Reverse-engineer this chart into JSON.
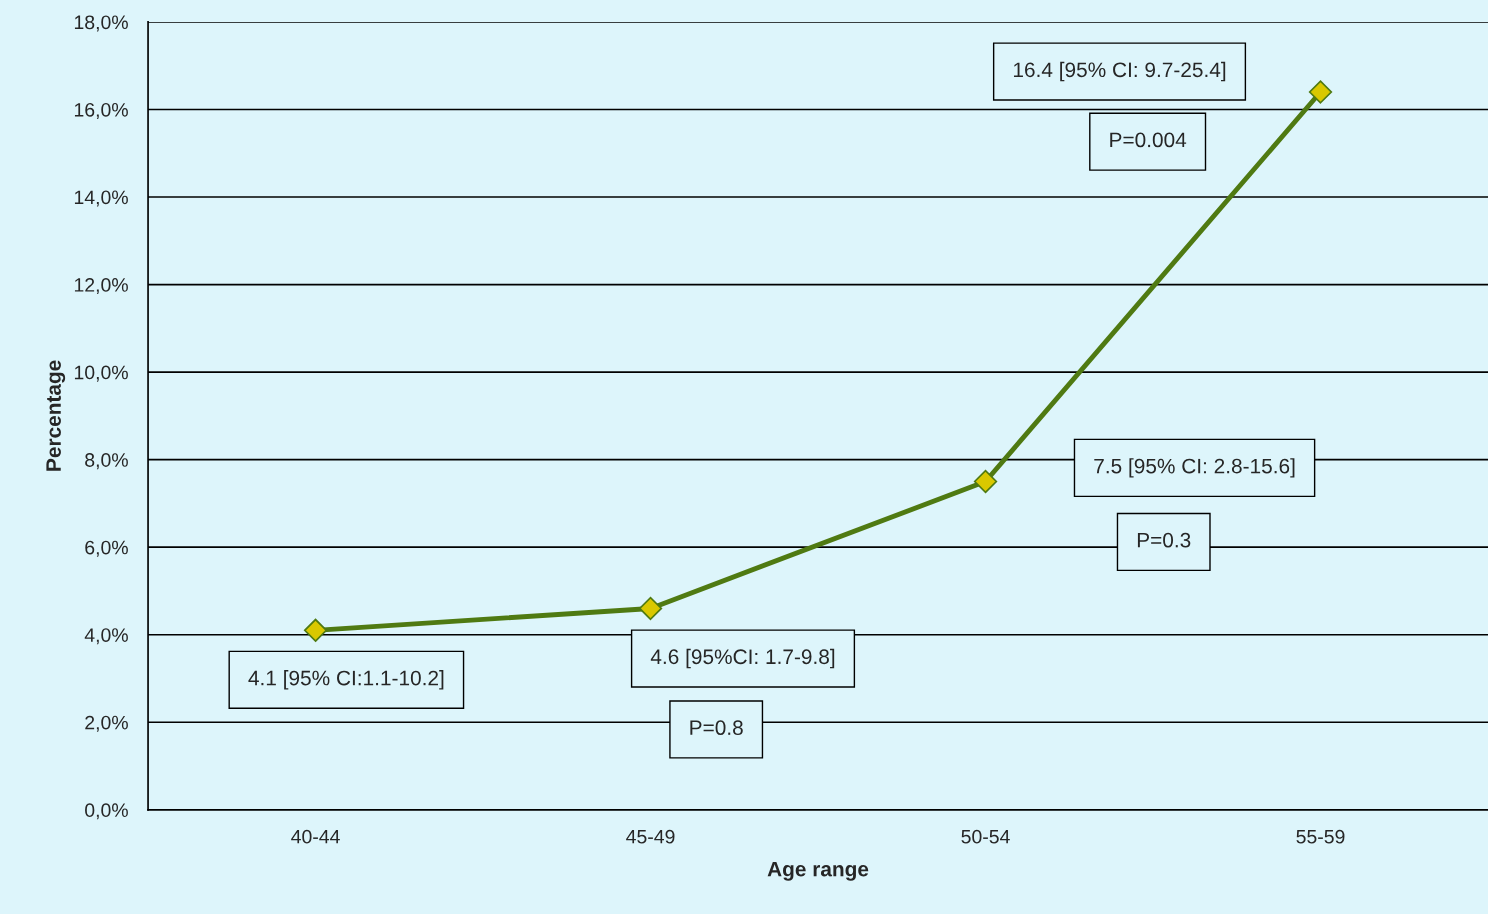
{
  "chart_data": {
    "type": "line",
    "xlabel": "Age range",
    "ylabel": "Percentage",
    "categories": [
      "40-44",
      "45-49",
      "50-54",
      "55-59"
    ],
    "series": [
      {
        "color": "#4f7a12",
        "values": [
          4.1,
          4.6,
          7.5,
          16.4
        ]
      }
    ],
    "marker": "diamond",
    "line_style": "solid",
    "grid": "y",
    "legend": false,
    "ylim": [
      0,
      18
    ],
    "yticks": [
      {
        "value": 0,
        "label": "0,0%"
      },
      {
        "value": 2,
        "label": "2,0%"
      },
      {
        "value": 4,
        "label": "4,0%"
      },
      {
        "value": 6,
        "label": "6,0%"
      },
      {
        "value": 8,
        "label": "8,0%"
      },
      {
        "value": 10,
        "label": "10,0%"
      },
      {
        "value": 12,
        "label": "12,0%"
      },
      {
        "value": 14,
        "label": "14,0%"
      },
      {
        "value": 16,
        "label": "16,0%"
      },
      {
        "value": 18,
        "label": "18,0%"
      }
    ],
    "annotations": [
      "4.1 [95% CI:1.1-10.2]",
      "4.6 [95%CI: 1.7-9.8]",
      "P=0.8",
      "7.5 [95% CI: 2.8-15.6]",
      "P=0.3",
      "16.4 [95% CI: 9.7-25.4]",
      "P=0.004"
    ]
  }
}
